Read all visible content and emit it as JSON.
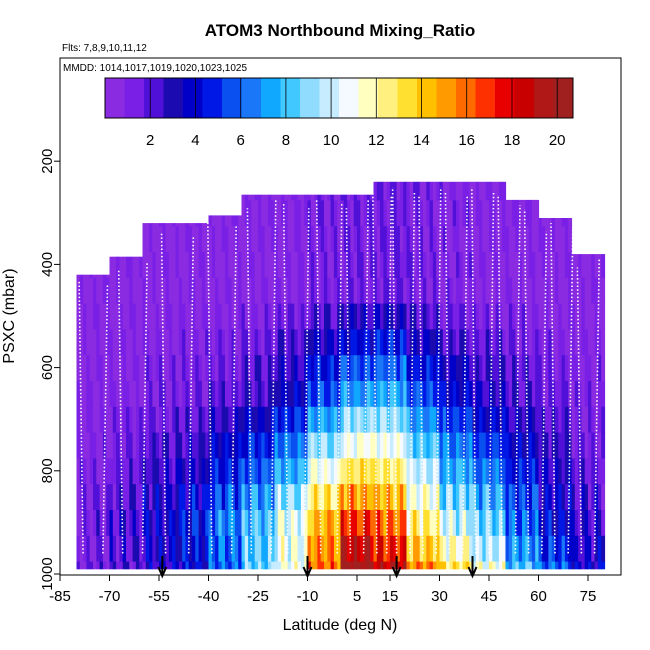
{
  "chart_data": {
    "type": "heatmap",
    "title": "ATOM3 Northbound Mixing_Ratio",
    "flights_label": "Flts: 7,8,9,10,11,12",
    "dates_label": "MMDD: 1014,1017,1019,1020,1023,1025",
    "xlabel": "Latitude (deg N)",
    "ylabel": "PSXC (mbar)",
    "xlim": [
      -85,
      85
    ],
    "ylim": [
      1000,
      0
    ],
    "x_ticks": [
      -85,
      -70,
      -55,
      -40,
      -25,
      -10,
      5,
      15,
      30,
      45,
      60,
      75
    ],
    "y_ticks": [
      200,
      400,
      600,
      800,
      1000
    ],
    "colorbar": {
      "min": 0,
      "max": 20.7,
      "ticks": [
        2,
        4,
        6,
        8,
        10,
        12,
        14,
        16,
        18,
        20
      ],
      "colors": [
        "#8a2be2",
        "#7a1fe6",
        "#5010d8",
        "#1a0ab0",
        "#0000c8",
        "#0018e6",
        "#0a50f0",
        "#1a78f8",
        "#10a8ff",
        "#40c8ff",
        "#90dcff",
        "#c8ecff",
        "#f4faff",
        "#ffffc0",
        "#fff080",
        "#ffe030",
        "#ffc000",
        "#ff9a00",
        "#ff6a00",
        "#ff3000",
        "#e80000",
        "#c80000",
        "#b01818",
        "#a02020"
      ]
    },
    "pressure_levels": [
      1000,
      950,
      900,
      850,
      800,
      750,
      700,
      650,
      600,
      550,
      500,
      450,
      400,
      350,
      300,
      250
    ],
    "columns": [
      {
        "lat": -75,
        "top": 420,
        "bottom_value": 1.2,
        "low_value": 1.2,
        "mid_value": 0.6,
        "upper_value": 0.4
      },
      {
        "lat": -65,
        "top": 385,
        "bottom_value": 2.0,
        "low_value": 2.4,
        "mid_value": 0.8,
        "upper_value": 0.4
      },
      {
        "lat": -55,
        "top": 320,
        "bottom_value": 3.0,
        "low_value": 3.5,
        "mid_value": 1.2,
        "upper_value": 0.4
      },
      {
        "lat": -45,
        "top": 320,
        "bottom_value": 4.0,
        "low_value": 4.5,
        "mid_value": 1.3,
        "upper_value": 0.5
      },
      {
        "lat": -35,
        "top": 305,
        "bottom_value": 6.0,
        "low_value": 6.5,
        "mid_value": 1.8,
        "upper_value": 0.5
      },
      {
        "lat": -25,
        "top": 265,
        "bottom_value": 8.5,
        "low_value": 8.0,
        "mid_value": 2.5,
        "upper_value": 0.6
      },
      {
        "lat": -15,
        "top": 265,
        "bottom_value": 11.0,
        "low_value": 10.5,
        "mid_value": 3.5,
        "upper_value": 0.8
      },
      {
        "lat": -5,
        "top": 265,
        "bottom_value": 16.0,
        "low_value": 14.5,
        "mid_value": 5.5,
        "upper_value": 1.2
      },
      {
        "lat": 5,
        "top": 265,
        "bottom_value": 20.5,
        "low_value": 17.0,
        "mid_value": 7.0,
        "upper_value": 1.4
      },
      {
        "lat": 15,
        "top": 240,
        "bottom_value": 19.0,
        "low_value": 16.0,
        "mid_value": 7.5,
        "upper_value": 1.6
      },
      {
        "lat": 25,
        "top": 240,
        "bottom_value": 15.5,
        "low_value": 12.5,
        "mid_value": 5.5,
        "upper_value": 1.2
      },
      {
        "lat": 35,
        "top": 240,
        "bottom_value": 13.0,
        "low_value": 10.0,
        "mid_value": 4.0,
        "upper_value": 0.9
      },
      {
        "lat": 45,
        "top": 240,
        "bottom_value": 11.0,
        "low_value": 8.5,
        "mid_value": 3.0,
        "upper_value": 0.7
      },
      {
        "lat": 55,
        "top": 275,
        "bottom_value": 8.0,
        "low_value": 6.0,
        "mid_value": 2.2,
        "upper_value": 0.5
      },
      {
        "lat": 65,
        "top": 310,
        "bottom_value": 6.0,
        "low_value": 4.0,
        "mid_value": 1.6,
        "upper_value": 0.4
      },
      {
        "lat": 75,
        "top": 380,
        "bottom_value": 3.5,
        "low_value": 2.5,
        "mid_value": 1.0,
        "upper_value": 0.4
      }
    ],
    "profile_latitudes": [
      -78,
      -72,
      -66,
      -60,
      -53,
      -46,
      -39,
      -33,
      -27,
      -21,
      -16,
      -11,
      -6,
      -1,
      3,
      7,
      11,
      14,
      17,
      21,
      25,
      29,
      33,
      37,
      41,
      45,
      49,
      53,
      57,
      61,
      65,
      69,
      73,
      77
    ],
    "arrow_latitudes": [
      -54,
      -10,
      17,
      40
    ]
  }
}
